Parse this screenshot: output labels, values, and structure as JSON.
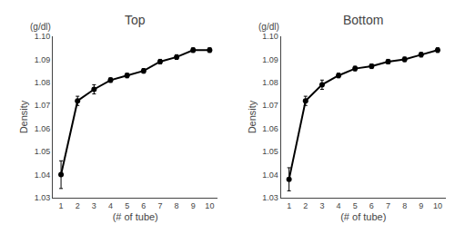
{
  "chart_data": [
    {
      "type": "line",
      "title": "Top",
      "x": [
        1,
        2,
        3,
        4,
        5,
        6,
        7,
        8,
        9,
        10
      ],
      "values": [
        1.04,
        1.072,
        1.077,
        1.081,
        1.083,
        1.085,
        1.089,
        1.091,
        1.094,
        1.094
      ],
      "yerr": [
        0.006,
        0.002,
        0.002,
        0.001,
        0.001,
        0.001,
        0.001,
        0.001,
        0.001,
        0.001
      ],
      "xlabel": "(# of tube)",
      "ylabel": "Density",
      "annotation": "(g/dl)",
      "xlim": [
        0.5,
        10.5
      ],
      "xticks": [
        1,
        2,
        3,
        4,
        5,
        6,
        7,
        8,
        9,
        10
      ],
      "ylim": [
        1.03,
        1.1
      ],
      "yticks": [
        1.03,
        1.04,
        1.05,
        1.06,
        1.07,
        1.08,
        1.09,
        {
          "value": 1.1,
          "label": "1.10"
        }
      ],
      "color": "#000000",
      "marker": "circle",
      "grid": false
    },
    {
      "type": "line",
      "title": "Bottom",
      "x": [
        1,
        2,
        3,
        4,
        5,
        6,
        7,
        8,
        9,
        10
      ],
      "values": [
        1.038,
        1.072,
        1.079,
        1.083,
        1.086,
        1.087,
        1.089,
        1.09,
        1.092,
        1.094
      ],
      "yerr": [
        0.005,
        0.002,
        0.002,
        0.001,
        0.001,
        0.001,
        0.001,
        0.001,
        0.001,
        0.001
      ],
      "xlabel": "(# of tube)",
      "ylabel": "Density",
      "annotation": "(g/dl)",
      "xlim": [
        0.5,
        10.5
      ],
      "xticks": [
        1,
        2,
        3,
        4,
        5,
        6,
        7,
        8,
        9,
        10
      ],
      "ylim": [
        1.03,
        1.1
      ],
      "yticks": [
        1.03,
        1.04,
        1.05,
        1.06,
        1.07,
        1.08,
        1.09,
        {
          "value": 1.1,
          "label": "1.10"
        }
      ],
      "color": "#000000",
      "marker": "circle",
      "grid": false
    }
  ]
}
